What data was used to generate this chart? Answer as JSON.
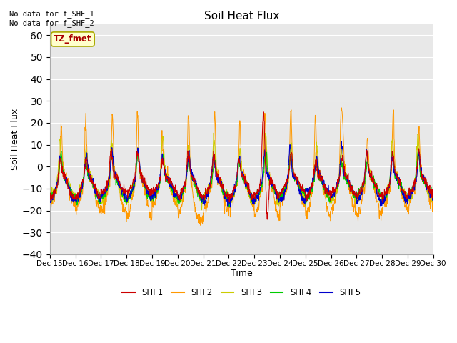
{
  "title": "Soil Heat Flux",
  "xlabel": "Time",
  "ylabel": "Soil Heat Flux",
  "ylim": [
    -40,
    65
  ],
  "yticks": [
    -40,
    -30,
    -20,
    -10,
    0,
    10,
    20,
    30,
    40,
    50,
    60
  ],
  "series_colors": {
    "SHF1": "#cc0000",
    "SHF2": "#ff9900",
    "SHF3": "#cccc00",
    "SHF4": "#00cc00",
    "SHF5": "#0000cc"
  },
  "annotation_text": "No data for f_SHF_1\nNo data for f_SHF_2",
  "tz_label": "TZ_fmet",
  "tz_label_color": "#aa0000",
  "tz_box_facecolor": "#ffffcc",
  "tz_box_edgecolor": "#aaaa00",
  "background_color": "#ffffff",
  "plot_bg_color": "#e8e8e8",
  "grid_color": "#ffffff",
  "tick_labels": [
    "Dec 15",
    "Dec 16",
    "Dec 17",
    "Dec 18",
    "Dec 19",
    "Dec 20",
    "Dec 21",
    "Dec 22",
    "Dec 23",
    "Dec 24",
    "Dec 25",
    "Dec 26",
    "Dec 27",
    "Dec 28",
    "Dec 29",
    "Dec 30"
  ],
  "n_points": 1440,
  "seed": 12345
}
